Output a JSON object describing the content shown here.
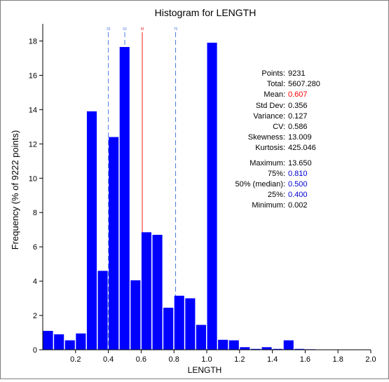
{
  "chart_data": {
    "type": "bar",
    "title": "Histogram for LENGTH",
    "xlabel": "LENGTH",
    "ylabel": "Frequency (% of 9222 points)",
    "xlim": [
      0,
      2.0
    ],
    "ylim": [
      0,
      19
    ],
    "x_ticks": [
      "0.2",
      "0.4",
      "0.6",
      "0.8",
      "1.0",
      "1.2",
      "1.4",
      "1.6",
      "1.8",
      "2.0"
    ],
    "y_ticks": [
      "0",
      "2",
      "4",
      "6",
      "8",
      "10",
      "12",
      "14",
      "16",
      "18"
    ],
    "bin_width": 0.0667,
    "bins_start": [
      0.0,
      0.0667,
      0.1333,
      0.2,
      0.2667,
      0.3333,
      0.4,
      0.4667,
      0.5333,
      0.6,
      0.6667,
      0.7333,
      0.8,
      0.8667,
      0.9333,
      1.0,
      1.0667,
      1.1333,
      1.2,
      1.2667,
      1.3333,
      1.4,
      1.4667,
      1.5333,
      1.6,
      1.6667,
      1.7333,
      1.8,
      1.8667,
      1.9333
    ],
    "values": [
      1.1,
      0.9,
      0.55,
      0.95,
      13.9,
      4.6,
      12.4,
      17.65,
      4.05,
      6.85,
      6.7,
      2.45,
      3.15,
      3.0,
      1.45,
      17.9,
      0.58,
      0.55,
      0.15,
      0.05,
      0.15,
      0.05,
      0.55,
      0.05,
      0.03,
      0.02,
      0.02,
      0.01,
      0.01,
      0.01
    ],
    "bar_color": "#0000ff",
    "markers": [
      {
        "label": "25",
        "value": 0.4,
        "color": "#4a7bdb",
        "style": "dashed"
      },
      {
        "label": "50",
        "value": 0.5,
        "color": "#4a7bdb",
        "style": "dashed"
      },
      {
        "label": "M",
        "value": 0.607,
        "color": "#ee2222",
        "style": "solid"
      },
      {
        "label": "75",
        "value": 0.81,
        "color": "#4a7bdb",
        "style": "dashed"
      }
    ],
    "grid": false,
    "legend": "none"
  },
  "stats": [
    {
      "label": "Points:",
      "value": "9231",
      "color": "#000000"
    },
    {
      "label": "Total:",
      "value": "5607.280",
      "color": "#000000"
    },
    {
      "label": "Mean:",
      "value": "0.607",
      "color": "#ff0000"
    },
    {
      "label": "Std Dev:",
      "value": "0.356",
      "color": "#000000"
    },
    {
      "label": "Variance:",
      "value": "0.127",
      "color": "#000000"
    },
    {
      "label": "CV:",
      "value": "0.586",
      "color": "#000000"
    },
    {
      "label": "Skewness:",
      "value": "13.009",
      "color": "#000000"
    },
    {
      "label": "Kurtosis:",
      "value": "425.046",
      "color": "#000000"
    },
    {
      "label": "Maximum:",
      "value": "13.650",
      "color": "#000000"
    },
    {
      "label": "75%:",
      "value": "0.810",
      "color": "#0000cc"
    },
    {
      "label": "50% (median):",
      "value": "0.500",
      "color": "#0000cc"
    },
    {
      "label": "25%:",
      "value": "0.400",
      "color": "#0000cc"
    },
    {
      "label": "Minimum:",
      "value": "0.002",
      "color": "#000000"
    }
  ]
}
